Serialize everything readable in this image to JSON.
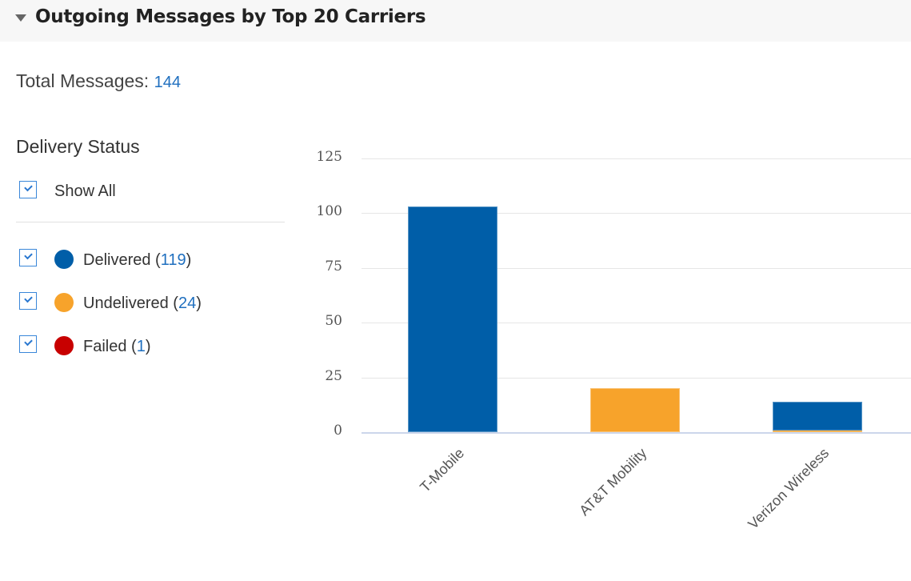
{
  "header": {
    "title": "Outgoing Messages by Top 20 Carriers",
    "collapse_icon": "caret-down-icon"
  },
  "summary": {
    "total_label": "Total Messages:",
    "total_value": "144"
  },
  "legend": {
    "title": "Delivery Status",
    "show_all_label": "Show All",
    "show_all_checked": true,
    "items": [
      {
        "label": "Delivered",
        "count": "119",
        "color": "#005ea8",
        "checked": true
      },
      {
        "label": "Undelivered",
        "count": "24",
        "color": "#f7a32b",
        "checked": true
      },
      {
        "label": "Failed",
        "count": "1",
        "color": "#c80000",
        "checked": true
      }
    ]
  },
  "chart_data": {
    "type": "bar",
    "stacked": true,
    "title": "Outgoing Messages by Top 20 Carriers",
    "categories": [
      "T-Mobile",
      "AT&T Mobility",
      "Verizon Wireless"
    ],
    "series": [
      {
        "name": "Delivered",
        "color": "#005ea8",
        "values": [
          103,
          0,
          13
        ]
      },
      {
        "name": "Undelivered",
        "color": "#f7a32b",
        "values": [
          0,
          20,
          1
        ]
      },
      {
        "name": "Failed",
        "color": "#c80000",
        "values": [
          0,
          0,
          0
        ]
      }
    ],
    "xlabel": "",
    "ylabel": "",
    "ylim": [
      0,
      125
    ],
    "yticks": [
      "0",
      "25",
      "50",
      "75",
      "100",
      "125"
    ],
    "grid": true,
    "legend_position": "left"
  }
}
